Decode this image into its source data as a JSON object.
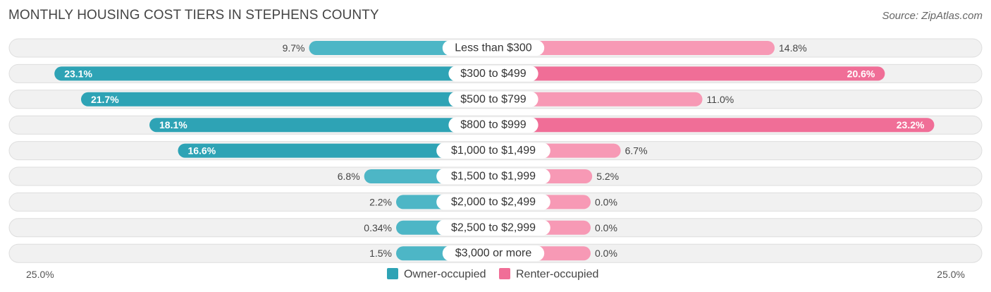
{
  "title": "MONTHLY HOUSING COST TIERS IN STEPHENS COUNTY",
  "source": "Source: ZipAtlas.com",
  "colors": {
    "owner": "#4db6c6",
    "owner_strong": "#2ea3b5",
    "renter": "#f799b5",
    "renter_strong": "#f06e97",
    "track": "#eeeeee"
  },
  "chart_data": {
    "type": "bar",
    "orientation": "horizontal-diverging",
    "categories": [
      "Less than $300",
      "$300 to $499",
      "$500 to $799",
      "$800 to $999",
      "$1,000 to $1,499",
      "$1,500 to $1,999",
      "$2,000 to $2,499",
      "$2,500 to $2,999",
      "$3,000 or more"
    ],
    "series": [
      {
        "name": "Owner-occupied",
        "values": [
          9.7,
          23.1,
          21.7,
          18.1,
          16.6,
          6.8,
          2.2,
          0.34,
          1.5
        ],
        "labels": [
          "9.7%",
          "23.1%",
          "21.7%",
          "18.1%",
          "16.6%",
          "6.8%",
          "2.2%",
          "0.34%",
          "1.5%"
        ]
      },
      {
        "name": "Renter-occupied",
        "values": [
          14.8,
          20.6,
          11.0,
          23.2,
          6.7,
          5.2,
          0.0,
          0.0,
          0.0
        ],
        "labels": [
          "14.8%",
          "20.6%",
          "11.0%",
          "23.2%",
          "6.7%",
          "5.2%",
          "0.0%",
          "0.0%",
          "0.0%"
        ]
      }
    ],
    "xlim": [
      -25,
      25
    ],
    "axis_labels": {
      "left": "25.0%",
      "right": "25.0%"
    },
    "legend": [
      "Owner-occupied",
      "Renter-occupied"
    ],
    "legend_position": "bottom-center"
  }
}
